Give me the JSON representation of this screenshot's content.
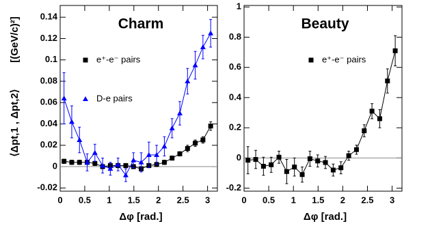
{
  "chart_data": [
    {
      "type": "line",
      "title": "Charm",
      "x_label": "Δφ [rad.]",
      "y_label": "⟨Δpt,1 , Δpt,2⟩",
      "y_unit": "[(GeV/c)²]",
      "x": [
        0.0785,
        0.236,
        0.393,
        0.55,
        0.707,
        0.864,
        1.021,
        1.178,
        1.335,
        1.492,
        1.649,
        1.806,
        1.963,
        2.121,
        2.278,
        2.435,
        2.592,
        2.749,
        2.906,
        3.063
      ],
      "series": [
        {
          "name": "e⁺-e⁻ pairs",
          "color": "#000000",
          "marker": "square",
          "values": [
            0.005,
            0.004,
            0.004,
            0.004,
            0.003,
            0.0,
            0.001,
            0.001,
            0.001,
            0.0,
            -0.002,
            0.001,
            0.002,
            0.004,
            0.008,
            0.012,
            0.017,
            0.022,
            0.025,
            0.038
          ],
          "errors": [
            0.002,
            0.002,
            0.002,
            0.002,
            0.002,
            0.002,
            0.002,
            0.002,
            0.002,
            0.002,
            0.002,
            0.002,
            0.002,
            0.002,
            0.002,
            0.002,
            0.003,
            0.003,
            0.003,
            0.004
          ]
        },
        {
          "name": "D-e pairs",
          "color": "#0000ff",
          "marker": "triangle",
          "values": [
            0.064,
            0.042,
            0.025,
            0.004,
            0.013,
            0.001,
            -0.002,
            0.002,
            -0.008,
            0.006,
            0.004,
            0.011,
            0.011,
            0.019,
            0.036,
            0.05,
            0.08,
            0.095,
            0.112,
            0.125
          ],
          "errors": [
            0.024,
            0.015,
            0.012,
            0.008,
            0.008,
            0.007,
            0.006,
            0.006,
            0.006,
            0.007,
            0.009,
            0.012,
            0.009,
            0.009,
            0.009,
            0.011,
            0.012,
            0.013,
            0.011,
            0.013
          ]
        }
      ],
      "xlim": [
        0,
        3.2
      ],
      "xticks": [
        0,
        0.5,
        1,
        1.5,
        2,
        2.5,
        3
      ],
      "ylim": [
        -0.023,
        0.151
      ],
      "yticks": [
        -0.02,
        0,
        0.02,
        0.04,
        0.06,
        0.08,
        0.1,
        0.12,
        0.14
      ],
      "zero_line": true
    },
    {
      "type": "line",
      "title": "Beauty",
      "x_label": "Δφ [rad.]",
      "x": [
        0.0785,
        0.236,
        0.393,
        0.55,
        0.707,
        0.864,
        1.021,
        1.178,
        1.335,
        1.492,
        1.649,
        1.806,
        1.963,
        2.121,
        2.278,
        2.435,
        2.592,
        2.749,
        2.906,
        3.063
      ],
      "series": [
        {
          "name": "e⁺-e⁻ pairs",
          "color": "#000000",
          "marker": "square",
          "values": [
            -0.015,
            -0.01,
            -0.055,
            -0.045,
            0.005,
            -0.09,
            -0.06,
            -0.11,
            -0.005,
            -0.02,
            -0.03,
            -0.08,
            -0.065,
            0.015,
            0.055,
            0.18,
            0.31,
            0.26,
            0.51,
            0.71
          ],
          "errors": [
            0.09,
            0.06,
            0.06,
            0.05,
            0.04,
            0.08,
            0.06,
            0.05,
            0.05,
            0.04,
            0.04,
            0.04,
            0.04,
            0.03,
            0.03,
            0.04,
            0.05,
            0.06,
            0.08,
            0.1
          ]
        }
      ],
      "xlim": [
        0,
        3.2
      ],
      "xticks": [
        0,
        0.5,
        1,
        1.5,
        2,
        2.5,
        3
      ],
      "ylim": [
        -0.22,
        1.01
      ],
      "yticks": [
        -0.2,
        0,
        0.2,
        0.4,
        0.6,
        0.8,
        1
      ],
      "zero_line": true
    }
  ]
}
